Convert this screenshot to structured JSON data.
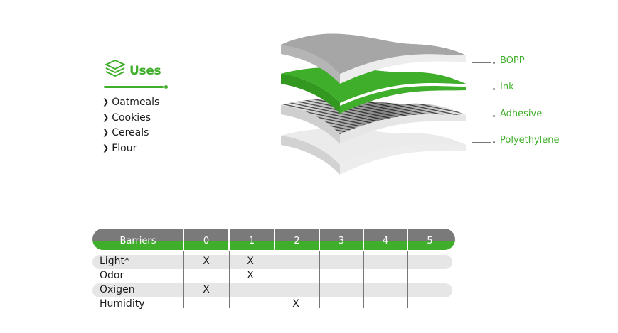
{
  "uses": {
    "title": "Uses",
    "items": [
      "Oatmeals",
      "Cookies",
      "Cereals",
      "Flour"
    ],
    "accent": "#3fae2a"
  },
  "layers": {
    "labels": [
      "BOPP",
      "Ink",
      "Adhesive",
      "Polyethylene"
    ],
    "colors": {
      "gray": "#a6a6a6",
      "green": "#3fae2a",
      "light": "#dcdcdc"
    }
  },
  "barriers": {
    "header": [
      "Barriers",
      "0",
      "1",
      "2",
      "3",
      "4",
      "5"
    ],
    "rows": [
      {
        "label": "Light*",
        "marks": [
          "X",
          "X",
          "",
          "",
          "",
          ""
        ]
      },
      {
        "label": "Odor",
        "marks": [
          "",
          "X",
          "",
          "",
          "",
          ""
        ]
      },
      {
        "label": "Oxigen",
        "marks": [
          "X",
          "",
          "",
          "",
          "",
          ""
        ]
      },
      {
        "label": "Humidity",
        "marks": [
          "",
          "",
          "X",
          "",
          "",
          ""
        ]
      }
    ]
  }
}
